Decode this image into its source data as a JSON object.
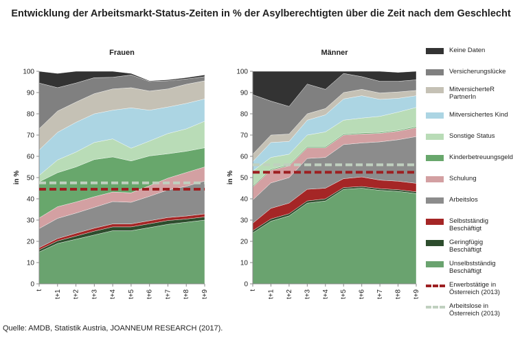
{
  "title": "Entwicklung der Arbeitsmarkt-Status-Zeiten in % der Asylberechtigten über die Zeit nach dem Geschlecht",
  "source": "Quelle: AMDB, Statistik Austria, JOANNEUM RESEARCH (2017).",
  "chart_data": [
    {
      "type": "area",
      "stacked": true,
      "title": "Frauen",
      "ylabel": "in %",
      "ylim": [
        0,
        100
      ],
      "yticks": [
        0,
        10,
        20,
        30,
        40,
        50,
        60,
        70,
        80,
        90,
        100
      ],
      "categories": [
        "t",
        "t+1",
        "t+2",
        "t+3",
        "t+4",
        "t+5",
        "t+6",
        "t+7",
        "t+8",
        "t+9"
      ],
      "series": [
        {
          "name": "Unselbstständig Beschäftigt",
          "color": "#6aa36f",
          "values": [
            15,
            19,
            21,
            23,
            25,
            25,
            26.5,
            28,
            29,
            30
          ]
        },
        {
          "name": "Geringfügig Beschäftigt",
          "color": "#2d4d2d",
          "values": [
            1,
            1.2,
            1.5,
            1.8,
            1.8,
            1.8,
            1.8,
            1.8,
            1.5,
            1.5
          ]
        },
        {
          "name": "Selbstständig Beschäftigt",
          "color": "#a52626",
          "values": [
            1,
            1.1,
            1.3,
            1.4,
            1.4,
            1.4,
            1.4,
            1.4,
            1.4,
            1.4
          ]
        },
        {
          "name": "Arbeitslos",
          "color": "#8c8c8c",
          "values": [
            9,
            9.5,
            9.5,
            9.8,
            10.5,
            10.2,
            11.5,
            13,
            14,
            15.5
          ]
        },
        {
          "name": "Schulung",
          "color": "#d3a0a2",
          "values": [
            5,
            5.5,
            5.2,
            5,
            4.5,
            4.4,
            5,
            5.5,
            6.5,
            6.6
          ]
        },
        {
          "name": "Kinderbetreuungsgeld",
          "color": "#68a76c",
          "values": [
            17,
            16,
            16.5,
            17.5,
            16.5,
            15,
            14,
            11.5,
            10,
            9
          ]
        },
        {
          "name": "Sonstige Status",
          "color": "#b9dcb7",
          "values": [
            3,
            6,
            7,
            8,
            8.5,
            6,
            7,
            9.5,
            10.5,
            12.5
          ]
        },
        {
          "name": "Mitversichertes Kind",
          "color": "#acd5e3",
          "values": [
            12,
            13,
            14,
            13.5,
            13.5,
            19,
            14.5,
            12.5,
            12,
            10.5
          ]
        },
        {
          "name": "MitversicherteR PartnerIn",
          "color": "#c5c1b5",
          "values": [
            10,
            10,
            9.5,
            9.5,
            10,
            9.5,
            9,
            8.5,
            9,
            8.5
          ]
        },
        {
          "name": "Versicherungslücke",
          "color": "#808080",
          "values": [
            21.5,
            11,
            9,
            7.5,
            5.5,
            6,
            4.5,
            3.8,
            2.5,
            2
          ]
        },
        {
          "name": "Keine Daten",
          "color": "#333333",
          "values": [
            5.5,
            6.7,
            6.5,
            3,
            2.8,
            0.7,
            0.3,
            0.5,
            0.6,
            0.8
          ]
        }
      ],
      "reference_lines": [
        {
          "name": "Erwerbstätige in Österreich (2013)",
          "value": 44.5,
          "color": "#9d1f21"
        },
        {
          "name": "Arbeitslose in Österreich (2013)",
          "value": 47.5,
          "color": "#c0d0bf"
        }
      ]
    },
    {
      "type": "area",
      "stacked": true,
      "title": "Männer",
      "ylabel": "in %",
      "ylim": [
        0,
        100
      ],
      "yticks": [
        0,
        10,
        20,
        30,
        40,
        50,
        60,
        70,
        80,
        90,
        100
      ],
      "categories": [
        "t",
        "t+1",
        "t+2",
        "t+3",
        "t+4",
        "t+5",
        "t+6",
        "t+7",
        "t+8",
        "t+9"
      ],
      "series": [
        {
          "name": "Unselbstständig Beschäftigt",
          "color": "#6aa36f",
          "values": [
            24,
            29.5,
            32,
            38,
            39,
            44.5,
            45,
            44,
            43.5,
            42.5
          ]
        },
        {
          "name": "Geringfügig Beschäftigt",
          "color": "#2d4d2d",
          "values": [
            1,
            1,
            1,
            1,
            1,
            0.8,
            0.8,
            0.8,
            0.8,
            0.8
          ]
        },
        {
          "name": "Selbstständig Beschäftigt",
          "color": "#a52626",
          "values": [
            3.5,
            5,
            5,
            5.5,
            5,
            4.2,
            4.5,
            4,
            4,
            4
          ]
        },
        {
          "name": "Arbeitslos",
          "color": "#8c8c8c",
          "values": [
            11,
            12,
            12,
            14.5,
            14.5,
            16,
            16,
            18,
            19.5,
            22
          ]
        },
        {
          "name": "Schulung",
          "color": "#d3a0a2",
          "values": [
            6,
            6,
            5.5,
            5,
            4.5,
            4.5,
            4.2,
            4,
            4,
            4.2
          ]
        },
        {
          "name": "Kinderbetreuungsgeld",
          "color": "#68a76c",
          "values": [
            0.5,
            0.5,
            0.5,
            0.5,
            0.5,
            0.5,
            0.5,
            0.5,
            0.5,
            0.5
          ]
        },
        {
          "name": "Sonstige Status",
          "color": "#b9dcb7",
          "values": [
            7,
            5.5,
            5,
            5.5,
            7,
            6.5,
            7,
            7.5,
            8.5,
            9
          ]
        },
        {
          "name": "Mitversichertes Kind",
          "color": "#acd5e3",
          "values": [
            4.5,
            7,
            6,
            7,
            8,
            10,
            10.5,
            8,
            6.5,
            5.5
          ]
        },
        {
          "name": "MitversicherteR PartnerIn",
          "color": "#c5c1b5",
          "values": [
            3.5,
            3.5,
            3.5,
            3,
            3,
            3,
            3,
            3,
            3,
            2.5
          ]
        },
        {
          "name": "Versicherungslücke",
          "color": "#808080",
          "values": [
            28,
            16,
            13,
            14,
            9,
            9,
            6,
            5.5,
            5,
            5
          ]
        },
        {
          "name": "Keine Daten",
          "color": "#333333",
          "values": [
            11,
            14,
            16.5,
            6,
            8.5,
            1,
            2.5,
            4.7,
            4.2,
            4
          ]
        }
      ],
      "reference_lines": [
        {
          "name": "Erwerbstätige in Österreich (2013)",
          "value": 52.5,
          "color": "#9d1f21"
        },
        {
          "name": "Arbeitslose in Österreich (2013)",
          "value": 56,
          "color": "#c0d0bf"
        }
      ]
    }
  ],
  "legend": [
    {
      "label": "Keine Daten",
      "color": "#333333",
      "kind": "box"
    },
    {
      "label": "Versicherungslücke",
      "color": "#808080",
      "kind": "box"
    },
    {
      "label": "MitversicherteR\nPartnerIn",
      "color": "#c5c1b5",
      "kind": "box"
    },
    {
      "label": "Mitversichertes Kind",
      "color": "#acd5e3",
      "kind": "box"
    },
    {
      "label": "Sonstige Status",
      "color": "#b9dcb7",
      "kind": "box"
    },
    {
      "label": "Kinderbetreuungsgeld",
      "color": "#68a76c",
      "kind": "box"
    },
    {
      "label": "Schulung",
      "color": "#d3a0a2",
      "kind": "box"
    },
    {
      "label": "Arbeitslos",
      "color": "#8c8c8c",
      "kind": "box"
    },
    {
      "label": "Selbstständig\nBeschäftigt",
      "color": "#a52626",
      "kind": "box"
    },
    {
      "label": "Geringfügig\nBeschäftigt",
      "color": "#2d4d2d",
      "kind": "box"
    },
    {
      "label": "Unselbstständig\nBeschäftigt",
      "color": "#6aa36f",
      "kind": "box"
    },
    {
      "label": "Erwerbstätige in\nÖsterreich (2013)",
      "color": "#9d1f21",
      "kind": "dash"
    },
    {
      "label": "Arbeitslose in\nÖsterreich (2013)",
      "color": "#c0d0bf",
      "kind": "dash"
    }
  ]
}
